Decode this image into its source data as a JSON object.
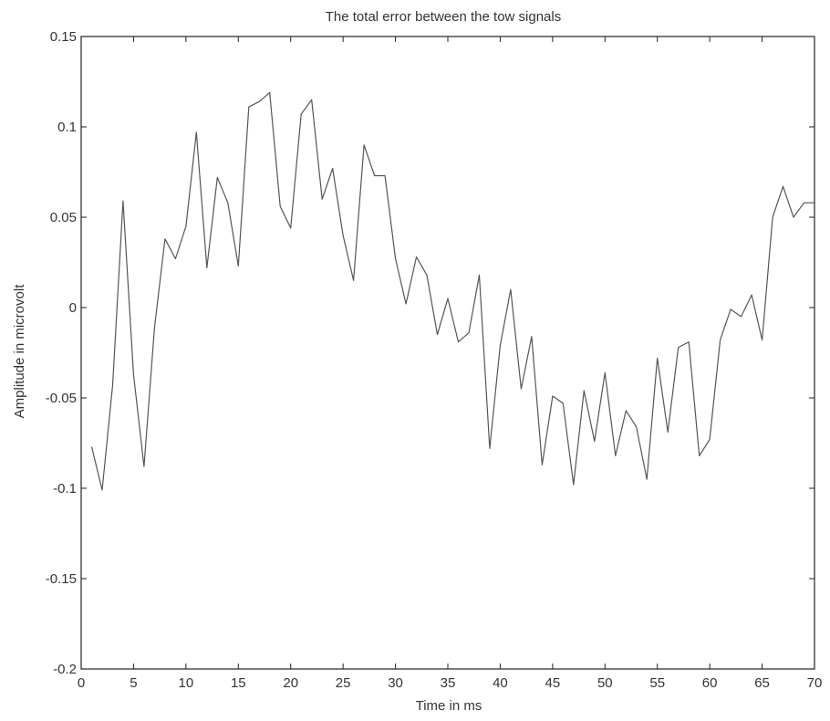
{
  "chart_data": {
    "type": "line",
    "title": "The total error between the tow signals",
    "xlabel": "Time in ms",
    "ylabel": "Amplitude in microvolt",
    "xlim": [
      0,
      70
    ],
    "ylim": [
      -0.2,
      0.15
    ],
    "x_ticks": [
      0,
      5,
      10,
      15,
      20,
      25,
      30,
      35,
      40,
      45,
      50,
      55,
      60,
      65,
      70
    ],
    "x_tick_labels": [
      "0",
      "5",
      "10",
      "15",
      "20",
      "25",
      "30",
      "35",
      "40",
      "45",
      "50",
      "55",
      "60",
      "65",
      "70"
    ],
    "y_ticks": [
      0.15,
      0.1,
      0.05,
      0,
      -0.05,
      -0.1,
      -0.15,
      -0.2
    ],
    "y_tick_labels": [
      "0.15",
      "0.1",
      "0.05",
      "0",
      "-0.05",
      "-0.1",
      "-0.15",
      "-0.2"
    ],
    "grid": false,
    "line_color": "#555555",
    "series": [
      {
        "x": [
          1,
          2,
          3,
          4,
          5,
          6,
          7,
          8,
          9,
          10,
          11,
          12,
          13,
          14,
          15,
          16,
          17,
          18,
          19,
          20,
          21,
          22,
          23,
          24,
          25,
          26,
          27,
          28,
          29,
          30,
          31,
          32,
          33,
          34,
          35,
          36,
          37,
          38,
          39,
          40,
          41,
          42,
          43,
          44,
          45,
          46,
          47,
          48,
          49,
          50,
          51,
          52,
          53,
          54,
          55,
          56,
          57,
          58,
          59,
          60,
          61,
          62,
          63,
          64,
          65,
          66,
          67,
          68,
          69,
          70
        ],
        "y": [
          -0.077,
          -0.101,
          -0.043,
          0.059,
          -0.037,
          -0.088,
          -0.011,
          0.038,
          0.027,
          0.045,
          0.097,
          0.022,
          0.072,
          0.058,
          0.023,
          0.111,
          0.114,
          0.119,
          0.056,
          0.044,
          0.107,
          0.115,
          0.06,
          0.077,
          0.04,
          0.015,
          0.09,
          0.073,
          0.073,
          0.027,
          0.002,
          0.028,
          0.018,
          -0.015,
          0.005,
          -0.019,
          -0.014,
          0.018,
          -0.078,
          -0.021,
          0.01,
          -0.045,
          -0.016,
          -0.087,
          -0.049,
          -0.053,
          -0.098,
          -0.046,
          -0.074,
          -0.036,
          -0.082,
          -0.057,
          -0.066,
          -0.095,
          -0.028,
          -0.069,
          -0.022,
          -0.019,
          -0.082,
          -0.073,
          -0.018,
          -0.001,
          -0.005,
          0.007,
          -0.018,
          0.05,
          0.067,
          0.05,
          0.058,
          0.058
        ]
      }
    ]
  }
}
